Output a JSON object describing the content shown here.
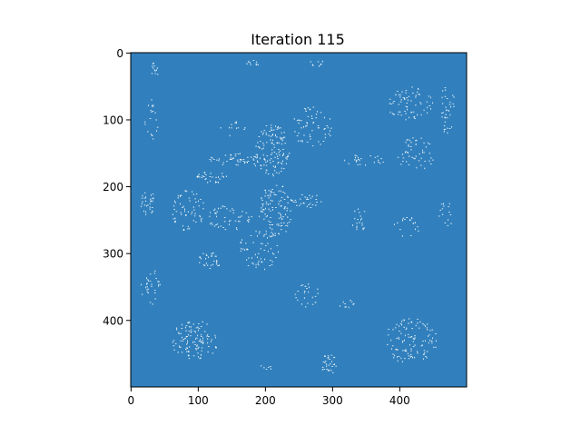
{
  "chart_data": {
    "type": "heatmap",
    "title": "Iteration 115",
    "xlabel": "",
    "ylabel": "",
    "grid_size": 500,
    "xlim": [
      0,
      500
    ],
    "ylim": [
      500,
      0
    ],
    "x_ticks": [
      0,
      100,
      200,
      300,
      400
    ],
    "y_ticks": [
      0,
      100,
      200,
      300,
      400
    ],
    "grid": false,
    "legend": "none",
    "colors": {
      "background_cell": "#3180bd",
      "active_cell": "#ffffff"
    },
    "active_clusters": [
      {
        "cx": 35,
        "cy": 25,
        "rx": 5,
        "ry": 12,
        "n": 12
      },
      {
        "cx": 180,
        "cy": 15,
        "rx": 12,
        "ry": 4,
        "n": 10
      },
      {
        "cx": 280,
        "cy": 15,
        "rx": 15,
        "ry": 4,
        "n": 8
      },
      {
        "cx": 415,
        "cy": 75,
        "rx": 35,
        "ry": 25,
        "n": 70
      },
      {
        "cx": 470,
        "cy": 85,
        "rx": 12,
        "ry": 35,
        "n": 35
      },
      {
        "cx": 30,
        "cy": 100,
        "rx": 10,
        "ry": 30,
        "n": 20
      },
      {
        "cx": 150,
        "cy": 110,
        "rx": 20,
        "ry": 15,
        "n": 12
      },
      {
        "cx": 210,
        "cy": 145,
        "rx": 25,
        "ry": 40,
        "n": 110
      },
      {
        "cx": 270,
        "cy": 110,
        "rx": 30,
        "ry": 30,
        "n": 60
      },
      {
        "cx": 170,
        "cy": 160,
        "rx": 55,
        "ry": 10,
        "n": 60
      },
      {
        "cx": 350,
        "cy": 160,
        "rx": 40,
        "ry": 8,
        "n": 25
      },
      {
        "cx": 425,
        "cy": 150,
        "rx": 30,
        "ry": 25,
        "n": 50
      },
      {
        "cx": 120,
        "cy": 185,
        "rx": 25,
        "ry": 10,
        "n": 30
      },
      {
        "cx": 25,
        "cy": 225,
        "rx": 12,
        "ry": 20,
        "n": 30
      },
      {
        "cx": 85,
        "cy": 235,
        "rx": 25,
        "ry": 30,
        "n": 60
      },
      {
        "cx": 145,
        "cy": 245,
        "rx": 35,
        "ry": 20,
        "n": 50
      },
      {
        "cx": 215,
        "cy": 235,
        "rx": 25,
        "ry": 40,
        "n": 110
      },
      {
        "cx": 260,
        "cy": 220,
        "rx": 25,
        "ry": 12,
        "n": 30
      },
      {
        "cx": 340,
        "cy": 250,
        "rx": 12,
        "ry": 18,
        "n": 20
      },
      {
        "cx": 410,
        "cy": 260,
        "rx": 20,
        "ry": 15,
        "n": 20
      },
      {
        "cx": 470,
        "cy": 240,
        "rx": 15,
        "ry": 20,
        "n": 15
      },
      {
        "cx": 190,
        "cy": 295,
        "rx": 30,
        "ry": 30,
        "n": 60
      },
      {
        "cx": 115,
        "cy": 310,
        "rx": 20,
        "ry": 12,
        "n": 30
      },
      {
        "cx": 30,
        "cy": 350,
        "rx": 15,
        "ry": 25,
        "n": 30
      },
      {
        "cx": 260,
        "cy": 360,
        "rx": 20,
        "ry": 20,
        "n": 25
      },
      {
        "cx": 320,
        "cy": 375,
        "rx": 15,
        "ry": 5,
        "n": 10
      },
      {
        "cx": 95,
        "cy": 430,
        "rx": 35,
        "ry": 30,
        "n": 110
      },
      {
        "cx": 415,
        "cy": 430,
        "rx": 40,
        "ry": 35,
        "n": 110
      },
      {
        "cx": 295,
        "cy": 465,
        "rx": 12,
        "ry": 15,
        "n": 30
      },
      {
        "cx": 200,
        "cy": 470,
        "rx": 10,
        "ry": 4,
        "n": 6
      }
    ]
  }
}
